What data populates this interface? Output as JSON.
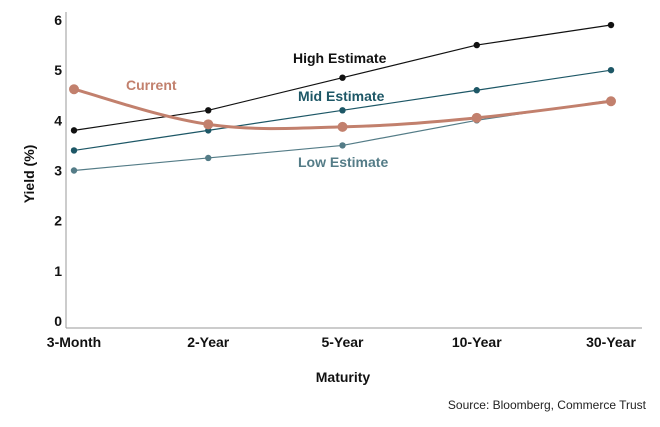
{
  "chart_data": {
    "type": "line",
    "title": "",
    "xlabel": "Maturity",
    "ylabel": "Yield (%)",
    "categories": [
      "3-Month",
      "2-Year",
      "5-Year",
      "10-Year",
      "30-Year"
    ],
    "ylim": [
      0,
      6
    ],
    "yticks": [
      0,
      1,
      2,
      3,
      4,
      5,
      6
    ],
    "grid": false,
    "legend": "inline labels",
    "series": [
      {
        "name": "High Estimate",
        "values": [
          3.8,
          4.2,
          4.85,
          5.5,
          5.9
        ],
        "color": "#111111",
        "smooth": false
      },
      {
        "name": "Mid Estimate",
        "values": [
          3.4,
          3.8,
          4.2,
          4.6,
          5.0
        ],
        "color": "#1d5766",
        "smooth": false
      },
      {
        "name": "Low Estimate",
        "values": [
          3.0,
          3.25,
          3.5,
          4.0,
          4.4
        ],
        "color": "#547c87",
        "smooth": false
      },
      {
        "name": "Current",
        "values": [
          4.62,
          3.92,
          3.87,
          4.05,
          4.38
        ],
        "color": "#c2806d",
        "smooth": true
      }
    ],
    "source": "Source: Bloomberg, Commerce Trust"
  }
}
